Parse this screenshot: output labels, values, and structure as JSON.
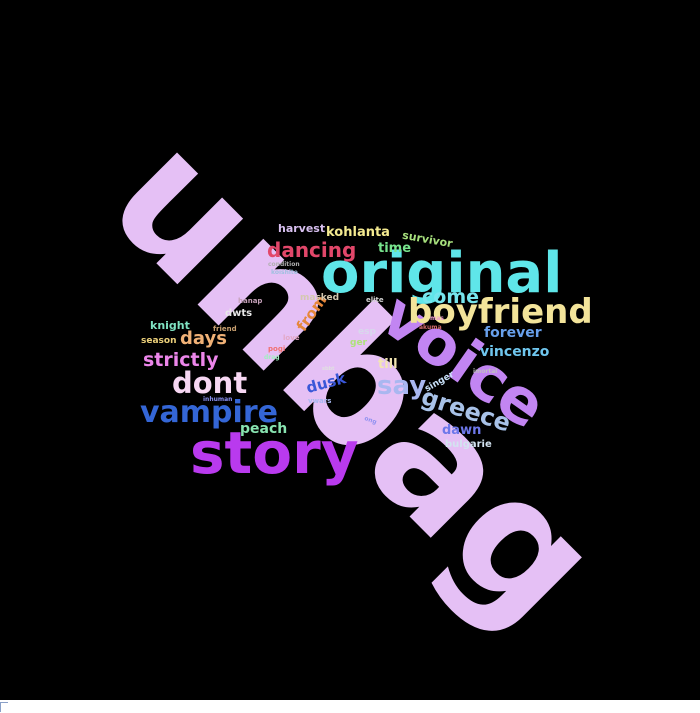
{
  "wordcloud": {
    "background": "#000000",
    "words": [
      {
        "text": "unbag",
        "color": "#e5c0f5"
      },
      {
        "text": "original",
        "color": "#5fe6e9"
      },
      {
        "text": "story",
        "color": "#b93aee"
      },
      {
        "text": "voice",
        "color": "#c285f2"
      },
      {
        "text": "boyfriend",
        "color": "#f3e49a"
      },
      {
        "text": "vampire",
        "color": "#3466d6"
      },
      {
        "text": "dont",
        "color": "#f7d7f3"
      },
      {
        "text": "say",
        "color": "#a9b7f0"
      },
      {
        "text": "greece",
        "color": "#a8c2e8"
      },
      {
        "text": "dancing",
        "color": "#e2476a"
      },
      {
        "text": "come",
        "color": "#77e6ee"
      },
      {
        "text": "strictly",
        "color": "#ec86ea"
      },
      {
        "text": "days",
        "color": "#f0b176"
      },
      {
        "text": "kohlanta",
        "color": "#f4ea90"
      },
      {
        "text": "time",
        "color": "#77e38d"
      },
      {
        "text": "forever",
        "color": "#68a0ec"
      },
      {
        "text": "vincenzo",
        "color": "#6fc6ee"
      },
      {
        "text": "dawn",
        "color": "#6e78ea"
      },
      {
        "text": "peach",
        "color": "#88e3b0"
      },
      {
        "text": "dusk",
        "color": "#3a57d8"
      },
      {
        "text": "from",
        "color": "#e6873a"
      },
      {
        "text": "till",
        "color": "#f3e6b2"
      },
      {
        "text": "survivor",
        "color": "#a7e07d"
      },
      {
        "text": "harvest",
        "color": "#d8c0f0"
      },
      {
        "text": "knight",
        "color": "#7fe2c2"
      },
      {
        "text": "dwts",
        "color": "#e8e8e8"
      },
      {
        "text": "masked",
        "color": "#d4c8b0"
      },
      {
        "text": "season",
        "color": "#ecd07a"
      },
      {
        "text": "bulgarie",
        "color": "#d3e3f0"
      },
      {
        "text": "singer",
        "color": "#c8e0f8"
      },
      {
        "text": "ger",
        "color": "#aee27a"
      },
      {
        "text": "esp",
        "color": "#d8d8ec"
      },
      {
        "text": "hanap",
        "color": "#c4a0b8"
      },
      {
        "text": "elite",
        "color": "#d0d0d0"
      },
      {
        "text": "vwars",
        "color": "#a7b8f0"
      },
      {
        "text": "friend",
        "color": "#c9a070"
      },
      {
        "text": "love",
        "color": "#e3a8c6"
      },
      {
        "text": "pogi",
        "color": "#f07070"
      },
      {
        "text": "inhuman",
        "color": "#8a8ff0"
      },
      {
        "text": "condition",
        "color": "#b0b0b0"
      },
      {
        "text": "koishite",
        "color": "#a0c0e0"
      },
      {
        "text": "akuma",
        "color": "#d06a6a"
      },
      {
        "text": "imortal",
        "color": "#c0c0c0"
      },
      {
        "text": "mas",
        "color": "#f0a0d0"
      },
      {
        "text": "drag",
        "color": "#a0f0c0"
      },
      {
        "text": "sbbt",
        "color": "#e0e0e0"
      },
      {
        "text": "ong",
        "color": "#9090f0"
      }
    ]
  }
}
